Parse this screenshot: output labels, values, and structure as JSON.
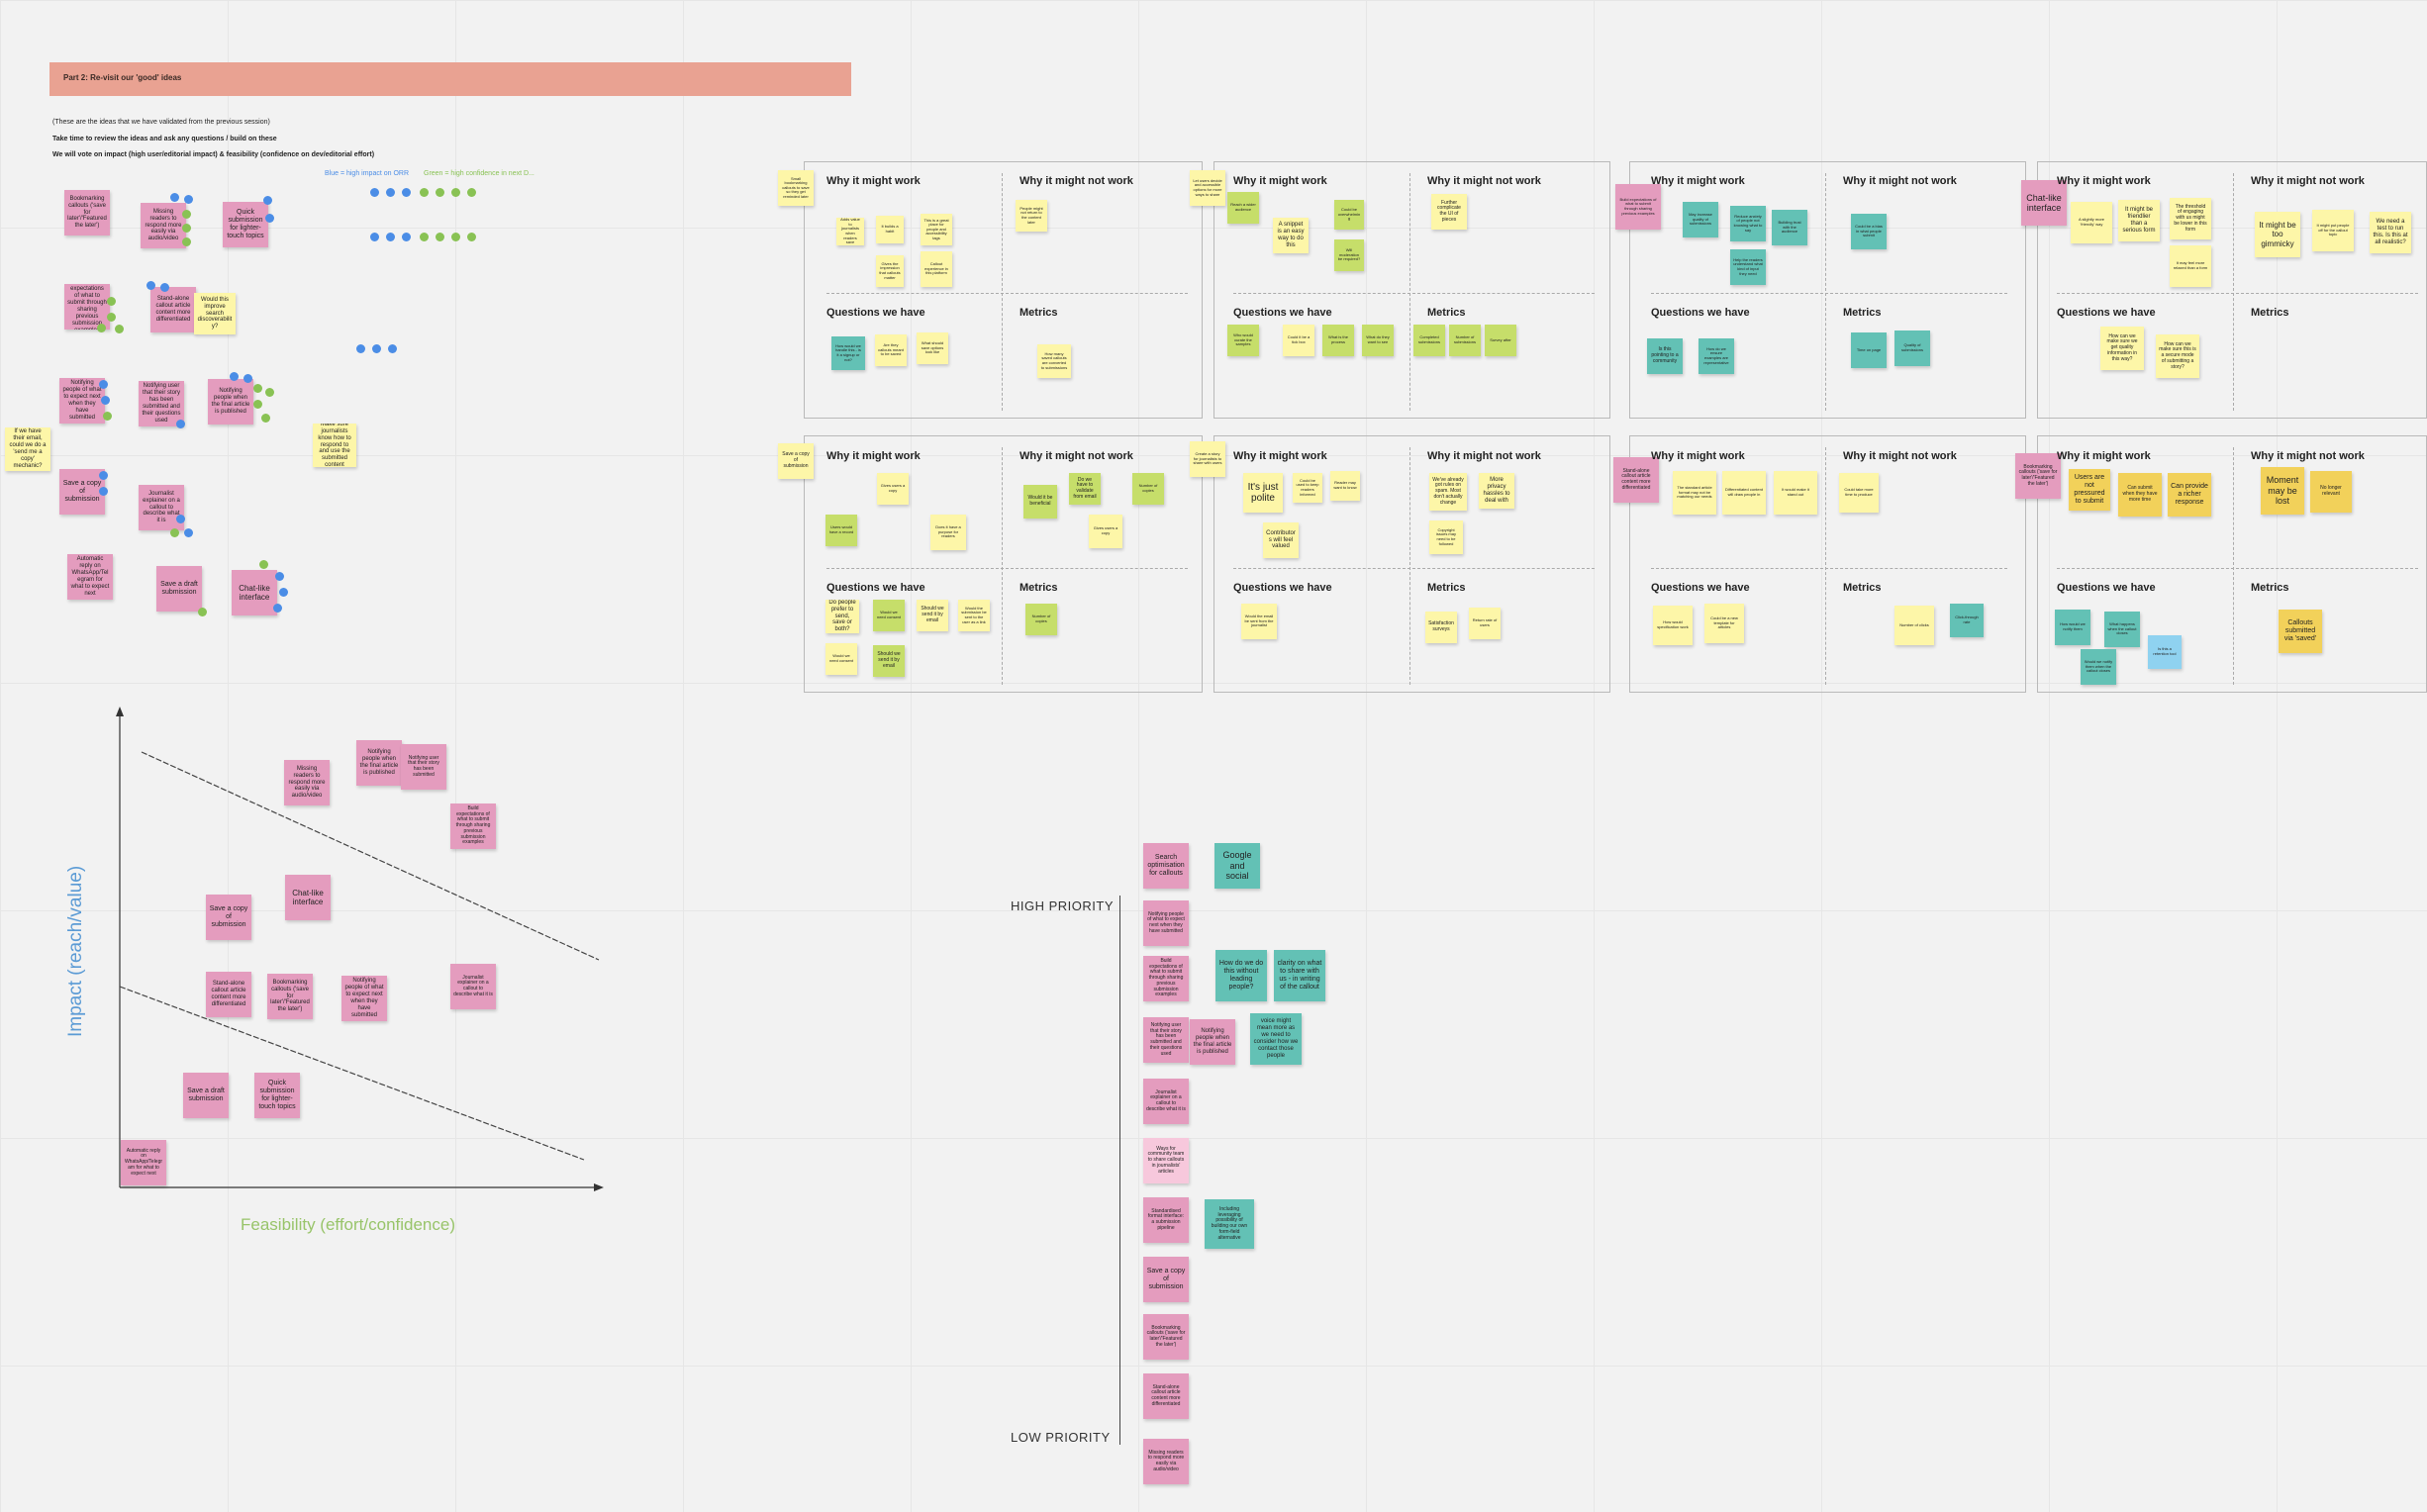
{
  "banner": {
    "title": "Part 2: Re-visit our 'good' ideas"
  },
  "intro": {
    "line1": "(These are the ideas that we have validated from the previous session)",
    "line2": "Take time to review the ideas and ask any questions / build on these",
    "line3": "We will vote on impact (high user/editorial impact) & feasibility (confidence on dev/editorial effort)",
    "legend_blue": "Blue = high impact on ORR",
    "legend_green": "Green = high confidence in next D..."
  },
  "colors": {
    "pink": "#e49cbe",
    "yellow": "#fdf6a8",
    "teal": "#63c1b5",
    "banner": "#e9a292"
  },
  "headers": {
    "why_work": "Why it might work",
    "why_not": "Why it might not work",
    "questions": "Questions we have",
    "metrics": "Metrics"
  },
  "left_ideas": {
    "bookmarking": "Bookmarking callouts ('save for later'/'Featured the later')",
    "missing": "Missing readers to respond more easily via audio/video",
    "quick": "Quick submission for lighter-touch topics",
    "build_expectations": "Build expectations of what to submit through sharing previous submission examples",
    "standalone": "Stand-alone callout article content more differentiated",
    "search_note": "Would this improve search discoverability?",
    "notify_expert": "Notifying people of what to expect next when they have submitted",
    "notify_story": "Notifying user that their story has been submitted and their questions used",
    "notify_final": "Notifying people when the final article is published",
    "email_note": "If we have their email, could we do a 'send me a copy' mechanic?",
    "save_copy": "Save a copy of submission",
    "journalist": "Journalist explainer on a callout to describe what it is",
    "auto_reply": "Automatic reply on WhatsApp/Telegram for what to expect next",
    "save_draft": "Save a draft submission",
    "chat_like": "Chat-like interface",
    "right_note": "Make sure journalists know how to respond to and use the submitted content"
  },
  "panels": {
    "p1_left_note": "Small bookmarking callouts to save so they get reminded later",
    "p1_work": [
      "Adds value to journalists when readers save",
      "It builds a habit",
      "This is a great place for people and accessibility tags"
    ],
    "p1_work2": [
      "Gives the impression that callouts matter",
      "Callout experience in this platform",
      "Depends on the spread of callouts"
    ],
    "p1_not": [
      "People might not return to the content later"
    ],
    "p1_q": [
      "How would we handle this - is it a signup or not?",
      "Are they callouts meant to be saved",
      "What should save options look like"
    ],
    "p1_metrics": [
      "How many saved callouts are converted to submissions"
    ],
    "p2_left_note": "Let users decide and accessible options for more ways to share",
    "p2_work": [
      "Reach a wider audience",
      "A snippet is an easy way to do this"
    ],
    "p2_not": [
      "Could be overwhelming",
      "Will moderation be required?",
      "Would it be more work"
    ],
    "p2_q": [
      "Who would curate the samples",
      "Could it be a tick box",
      "What is the process",
      "What do they want to see"
    ],
    "p2_metrics": [
      "Further complicate the UI of pieces",
      "Completed submissions",
      "Number of submissions",
      "Survey after"
    ],
    "p3_note": "Build expectations of what to submit through sharing previous examples",
    "p3_work": [
      "May increase quality of submissions",
      "Reduce anxiety of people not knowing what to say",
      "Building trust with the audience"
    ],
    "p3_work2": [
      "Help the readers understand what kind of input they need"
    ],
    "p3_not": [
      "Could be a bias in what people submit"
    ],
    "p3_q": [
      "Is this pointing to a community",
      "How do we ensure examples are representative"
    ],
    "p3_metrics": [
      "Time on page",
      "Quality of submissions"
    ],
    "p4_note": "Chat-like interface",
    "p4_work": [
      "A slightly more 'friendly' way",
      "It might be friendlier than a serious form",
      "The threshold of engaging with us might be lower in this form"
    ],
    "p4_work2": [
      "It may feel more relaxed than a form"
    ],
    "p4_not": [
      "It might be too gimmicky",
      "It might put people off for the callout topic",
      "We need a test to run this. Is this at all realistic?"
    ],
    "p4_q": [
      "How can we make sure we get quality information in this way?",
      "How can we make sure this is a secure mode of submitting a story?"
    ],
    "p5_note": "Save a copy of submission",
    "p5_work": [
      "Gives users a copy",
      "Users would have a record"
    ],
    "p5_not": [
      "Would it be beneficial",
      "Do we have to validate from email",
      "Does it have a purpose for readers"
    ],
    "p5_q": [
      "Do people prefer to send, save or both?",
      "Would we need consent",
      "Should we send it by email",
      "Would the submission be sent to the user as a link"
    ],
    "p5_metrics": [
      "Number of copies"
    ],
    "p6_note": "Create a story for journalists to share with users",
    "p6_work": [
      "It's just polite",
      "Could be used to keep readers informed",
      "Reader may want to know"
    ],
    "p6_work2": [
      "Contributors will feel valued"
    ],
    "p6_not": [
      "We've already got rules on spam. Most don't actually change",
      "More privacy hassles to deal with"
    ],
    "p6_not2": [
      "Copyright issues may need to be followed"
    ],
    "p6_q": [
      "Would the email be sent from the journalist",
      "What happens to their story?"
    ],
    "p6_metrics": [
      "Satisfaction surveys",
      "Return rate of users"
    ],
    "p7_note": "Stand-alone callout article content more differentiated",
    "p7_work": [
      "The standard article format may not be matching our needs",
      "Differentiated content will draw people in",
      "It would make it stand out"
    ],
    "p7_not": [
      "Could take more time to produce"
    ],
    "p7_q": [
      "How would specification work",
      "Could be a new template for articles"
    ],
    "p7_metrics": [
      "Number of clicks",
      "Click-through rate"
    ],
    "p8_note": "Bookmarking callouts ('save for later'/'Featured the later')",
    "p8_work": [
      "Users are not pressured to submit",
      "Can submit when they have more time",
      "Can provide a richer response"
    ],
    "p8_not": [
      "Moment may be lost",
      "No longer relevant"
    ],
    "p8_q": [
      "How would we notify them",
      "What happens when the callout closes",
      "Would we notify them when the callout closes",
      "Is this a retention tool"
    ],
    "p8_metrics": [
      "Callouts submitted via 'saved'"
    ]
  },
  "matrix": {
    "y_label": "Impact (reach/value)",
    "x_label": "Feasibility (effort/confidence)",
    "items": {
      "missing": "Missing readers to respond more easily via audio/video",
      "notify_final": "Notifying people when the final article is published",
      "notify_story": "Notifying user that their story has been submitted",
      "build": "Build expectations of what to submit through sharing previous submission examples",
      "save_copy": "Save a copy of submission",
      "chat": "Chat-like interface",
      "standalone": "Stand-alone callout article content more differentiated",
      "bookmarking": "Bookmarking callouts ('save for later'/'Featured the later')",
      "notify_expect": "Notifying people of what to expect next when they have submitted",
      "journalist": "Journalist explainer on a callout to describe what it is",
      "draft": "Save a draft submission",
      "quick": "Quick submission for lighter-touch topics",
      "auto": "Automatic reply on WhatsApp/Telegram for what to expect next"
    }
  },
  "priority": {
    "high": "HIGH PRIORITY",
    "low": "LOW PRIORITY",
    "column": [
      "Search optimisation for callouts",
      "Notifying people of what to expect next when they have submitted",
      "Build expectations of what to submit through sharing previous submission examples",
      "Notifying user that their story has been submitted and their questions used",
      "Journalist explainer on a callout to describe what it is",
      "Ways for community team to share callouts in journalists' articles",
      "Standardised format interface: a submission pipeline",
      "Save a copy of submission",
      "Bookmarking callouts ('save for later'/'Featured the later')",
      "Stand-alone callout article content more differentiated",
      "Missing readers to respond more easily via audio/video"
    ],
    "side": {
      "notify_final": "Notifying people when the final article is published",
      "google": "Google and social",
      "how_without": "How do we do this without leading people?",
      "clarity": "clarity on what to share with us - in writing of the callout",
      "voice": "voice might mean more as we need to consider how we contact those people",
      "including": "Including leveraging possibility of building our own form-field alternative"
    }
  }
}
